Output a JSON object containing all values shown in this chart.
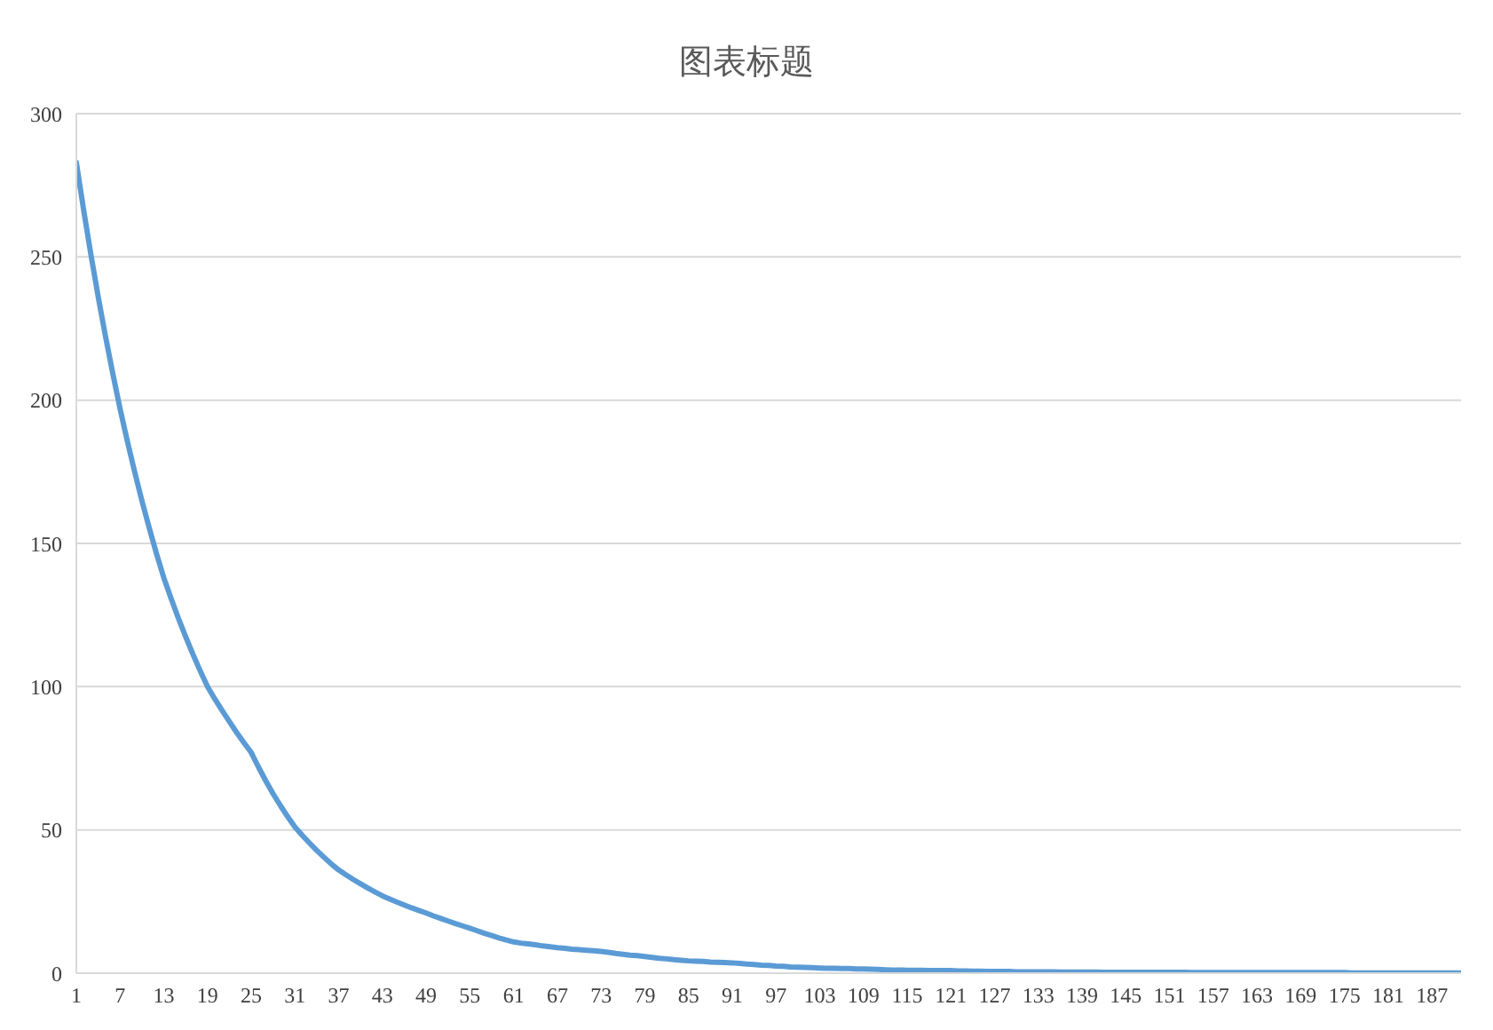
{
  "chart_data": {
    "type": "line",
    "title": "图表标题",
    "categories": [
      "1",
      null,
      null,
      null,
      null,
      null,
      "7",
      null,
      null,
      null,
      null,
      null,
      "13",
      null,
      null,
      null,
      null,
      null,
      "19",
      null,
      null,
      null,
      null,
      null,
      "25",
      null,
      null,
      null,
      null,
      null,
      "31",
      null,
      null,
      null,
      null,
      null,
      "37",
      null,
      null,
      null,
      null,
      null,
      "43",
      null,
      null,
      null,
      null,
      null,
      "49",
      null,
      null,
      null,
      null,
      null,
      "55",
      null,
      null,
      null,
      null,
      null,
      "61",
      null,
      null,
      null,
      null,
      null,
      "67",
      null,
      null,
      null,
      null,
      null,
      "73",
      null,
      null,
      null,
      null,
      null,
      "79",
      null,
      null,
      null,
      null,
      null,
      "85",
      null,
      null,
      null,
      null,
      null,
      "91",
      null,
      null,
      null,
      null,
      null,
      "97",
      null,
      null,
      null,
      null,
      null,
      "103",
      null,
      null,
      null,
      null,
      null,
      "109",
      null,
      null,
      null,
      null,
      null,
      "115",
      null,
      null,
      null,
      null,
      null,
      "121",
      null,
      null,
      null,
      null,
      null,
      "127",
      null,
      null,
      null,
      null,
      null,
      "133",
      null,
      null,
      null,
      null,
      null,
      "139",
      null,
      null,
      null,
      null,
      null,
      "145",
      null,
      null,
      null,
      null,
      null,
      "151",
      null,
      null,
      null,
      null,
      null,
      "157",
      null,
      null,
      null,
      null,
      null,
      "163",
      null,
      null,
      null,
      null,
      null,
      "169",
      null,
      null,
      null,
      null,
      null,
      "175",
      null,
      null,
      null,
      null,
      null,
      "181",
      null,
      null,
      null,
      null,
      null,
      "187",
      null,
      null,
      null,
      null
    ],
    "series": [
      {
        "color": "#5b9bd5",
        "values": [
          283,
          266.4,
          250.8,
          236.1,
          222.3,
          209.3,
          197,
          185.7,
          175,
          164.9,
          155.4,
          146.4,
          138,
          130.8,
          123.9,
          117.4,
          111.3,
          105.5,
          100,
          95.7,
          91.7,
          87.8,
          84,
          80.4,
          77,
          71.9,
          67.1,
          62.6,
          58.5,
          54.6,
          51,
          48.1,
          45.4,
          42.8,
          40.4,
          38.1,
          36,
          34.3,
          32.7,
          31.2,
          29.7,
          28.3,
          27,
          25.9,
          24.8,
          23.8,
          22.8,
          21.9,
          21,
          20,
          19.1,
          18.2,
          17.3,
          16.5,
          15.7,
          14.8,
          13.9,
          13.1,
          12.3,
          11.6,
          10.9,
          10.5,
          10.2,
          9.9,
          9.5,
          9.2,
          8.9,
          8.7,
          8.4,
          8.2,
          8,
          7.8,
          7.6,
          7.3,
          6.9,
          6.6,
          6.3,
          6.1,
          5.8,
          5.5,
          5.2,
          5,
          4.7,
          4.5,
          4.3,
          4.2,
          4.1,
          3.9,
          3.8,
          3.7,
          3.6,
          3.4,
          3.2,
          3,
          2.8,
          2.7,
          2.5,
          2.4,
          2.2,
          2.1,
          2,
          1.9,
          1.8,
          1.7,
          1.7,
          1.6,
          1.6,
          1.5,
          1.5,
          1.4,
          1.3,
          1.2,
          1.1,
          1.1,
          1,
          1,
          1,
          0.9,
          0.9,
          0.9,
          0.9,
          0.8,
          0.8,
          0.7,
          0.7,
          0.6,
          0.6,
          0.6,
          0.6,
          0.5,
          0.5,
          0.5,
          0.5,
          0.5,
          0.5,
          0.4,
          0.4,
          0.4,
          0.4,
          0.4,
          0.4,
          0.3,
          0.3,
          0.3,
          0.3,
          0.3,
          0.3,
          0.3,
          0.3,
          0.3,
          0.3,
          0.3,
          0.3,
          0.2,
          0.2,
          0.2,
          0.2,
          0.2,
          0.2,
          0.2,
          0.2,
          0.2,
          0.2,
          0.2,
          0.2,
          0.2,
          0.2,
          0.2,
          0.2,
          0.2,
          0.2,
          0.2,
          0.2,
          0.2,
          0.2,
          0.1,
          0.1,
          0.1,
          0.1,
          0.1,
          0.1,
          0.1,
          0.1,
          0.1,
          0.1,
          0.1,
          0.1,
          0.1,
          0.1,
          0.1,
          0.1
        ]
      }
    ],
    "ylim": [
      0,
      300
    ],
    "yticks": [
      0,
      50,
      100,
      150,
      200,
      250,
      300
    ],
    "grid": "y",
    "marker": "none",
    "line_style": "solid"
  }
}
